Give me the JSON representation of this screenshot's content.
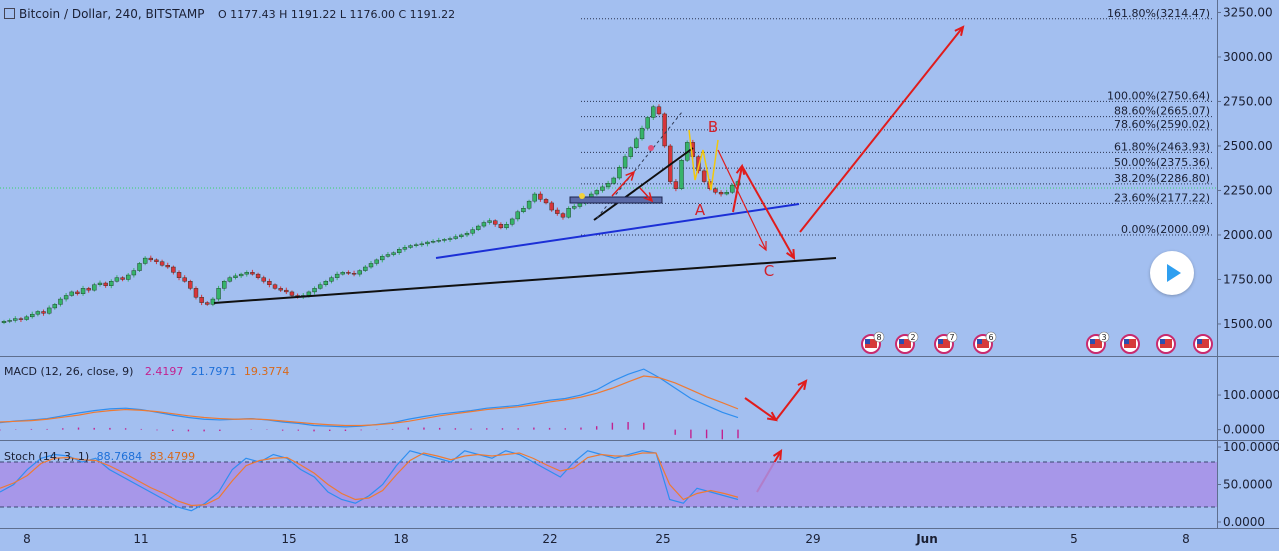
{
  "header": {
    "title": "Bitcoin / Dollar, 240, BITSTAMP",
    "ohlc": "O 1177.43 H 1191.22 L 1176.00 C 1191.22",
    "macd_label": "MACD (12, 26, close, 9)",
    "macd_v1": "2.4197",
    "macd_v2": "21.7971",
    "macd_v3": "19.3774",
    "stoch_label": "Stoch (14, 3, 1)",
    "stoch_v1": "88.7684",
    "stoch_v2": "83.4799"
  },
  "colors": {
    "background": "#a3bff0",
    "up_candle": "#36b36a",
    "down_candle": "#d6353a",
    "annotation_red": "#e01c1c",
    "blue_trend": "#1b2fd6",
    "macd_line": "#2e8ef0",
    "signal_line": "#ee7a33",
    "stoch_band": "#a88fe8"
  },
  "chart_data": [
    {
      "type": "candlestick",
      "title": "Bitcoin / Dollar, 240, BITSTAMP",
      "ylim": [
        1320,
        3320
      ],
      "y_ticks": [
        "1500.00",
        "1750.00",
        "2000.00",
        "2250.00",
        "2500.00",
        "2750.00",
        "3000.00",
        "3250.00"
      ],
      "x_ticks": [
        "8",
        "11",
        "15",
        "18",
        "22",
        "25",
        "29",
        "Jun",
        "5",
        "8"
      ],
      "fib_levels": [
        {
          "label": "161.80%(3214.47)",
          "value": 3214.47
        },
        {
          "label": "100.00%(2750.64)",
          "value": 2750.64
        },
        {
          "label": "88.60%(2665.07)",
          "value": 2665.07
        },
        {
          "label": "78.60%(2590.02)",
          "value": 2590.02
        },
        {
          "label": "61.80%(2463.93)",
          "value": 2463.93
        },
        {
          "label": "50.00%(2375.36)",
          "value": 2375.36
        },
        {
          "label": "38.20%(2286.80)",
          "value": 2286.8
        },
        {
          "label": "23.60%(2177.22)",
          "value": 2177.22
        },
        {
          "label": "0.00%(2000.09)",
          "value": 2000.09
        }
      ],
      "wave_labels": [
        "A",
        "B",
        "C"
      ],
      "event_badges": [
        "8",
        "2",
        "7",
        "6",
        "3"
      ],
      "close_series": [
        1515,
        1520,
        1530,
        1525,
        1540,
        1555,
        1570,
        1560,
        1590,
        1610,
        1640,
        1660,
        1680,
        1670,
        1700,
        1690,
        1720,
        1730,
        1715,
        1740,
        1760,
        1750,
        1775,
        1800,
        1840,
        1870,
        1860,
        1850,
        1830,
        1820,
        1790,
        1760,
        1740,
        1700,
        1650,
        1620,
        1610,
        1640,
        1700,
        1740,
        1760,
        1770,
        1780,
        1790,
        1780,
        1760,
        1740,
        1720,
        1700,
        1690,
        1680,
        1660,
        1650,
        1660,
        1680,
        1700,
        1720,
        1740,
        1760,
        1780,
        1790,
        1785,
        1780,
        1800,
        1820,
        1840,
        1860,
        1880,
        1890,
        1900,
        1920,
        1930,
        1940,
        1945,
        1950,
        1960,
        1965,
        1970,
        1975,
        1980,
        1990,
        2000,
        2010,
        2030,
        2050,
        2070,
        2080,
        2060,
        2040,
        2060,
        2090,
        2130,
        2150,
        2190,
        2230,
        2200,
        2180,
        2140,
        2120,
        2100,
        2150,
        2160,
        2180,
        2200,
        2230,
        2250,
        2270,
        2290,
        2320,
        2380,
        2440,
        2490,
        2540,
        2600,
        2660,
        2720,
        2680,
        2500,
        2300,
        2260,
        2420,
        2520,
        2440,
        2360,
        2300,
        2260,
        2240,
        2230,
        2240,
        2280,
        2300
      ],
      "annotation_levels": [
        3214.47,
        1870,
        1600,
        2190
      ]
    },
    {
      "type": "line",
      "title": "MACD (12, 26, close, 9)",
      "ylim": [
        -30,
        210
      ],
      "y_ticks": [
        "100.0000",
        "0.0000"
      ],
      "series": [
        {
          "name": "MACD",
          "values": [
            20,
            25,
            28,
            32,
            40,
            48,
            55,
            60,
            62,
            58,
            50,
            42,
            35,
            30,
            28,
            30,
            32,
            28,
            22,
            18,
            12,
            10,
            8,
            10,
            15,
            20,
            30,
            38,
            45,
            50,
            55,
            62,
            66,
            70,
            78,
            85,
            90,
            100,
            115,
            140,
            160,
            175,
            150,
            120,
            90,
            70,
            50,
            35
          ]
        },
        {
          "name": "Signal",
          "values": [
            22,
            24,
            26,
            30,
            36,
            42,
            50,
            55,
            58,
            56,
            52,
            46,
            40,
            35,
            32,
            30,
            31,
            29,
            25,
            21,
            17,
            14,
            12,
            12,
            14,
            18,
            24,
            32,
            40,
            46,
            52,
            58,
            62,
            66,
            72,
            80,
            86,
            94,
            105,
            120,
            138,
            155,
            150,
            135,
            115,
            95,
            78,
            60
          ]
        }
      ]
    },
    {
      "type": "line",
      "title": "Stoch (14, 3, 1)",
      "ylim": [
        0,
        100
      ],
      "y_ticks": [
        "100.0000",
        "50.0000",
        "0.0000"
      ],
      "band": [
        20,
        80
      ],
      "series": [
        {
          "name": "%K",
          "values": [
            40,
            50,
            70,
            85,
            90,
            88,
            80,
            85,
            70,
            60,
            50,
            40,
            30,
            20,
            15,
            25,
            40,
            70,
            85,
            80,
            90,
            85,
            70,
            60,
            40,
            30,
            25,
            35,
            50,
            75,
            95,
            90,
            85,
            80,
            95,
            90,
            85,
            95,
            90,
            80,
            70,
            60,
            80,
            95,
            90,
            85,
            90,
            95,
            92,
            30,
            25,
            45,
            40,
            35,
            30
          ]
        },
        {
          "name": "%D",
          "values": [
            45,
            52,
            62,
            78,
            85,
            86,
            83,
            82,
            75,
            66,
            56,
            46,
            38,
            28,
            22,
            23,
            32,
            55,
            75,
            82,
            85,
            86,
            76,
            65,
            50,
            38,
            30,
            32,
            42,
            63,
            82,
            92,
            88,
            83,
            88,
            90,
            88,
            90,
            92,
            85,
            76,
            68,
            72,
            86,
            90,
            88,
            88,
            92,
            92,
            50,
            30,
            38,
            42,
            38,
            33
          ]
        }
      ]
    }
  ]
}
